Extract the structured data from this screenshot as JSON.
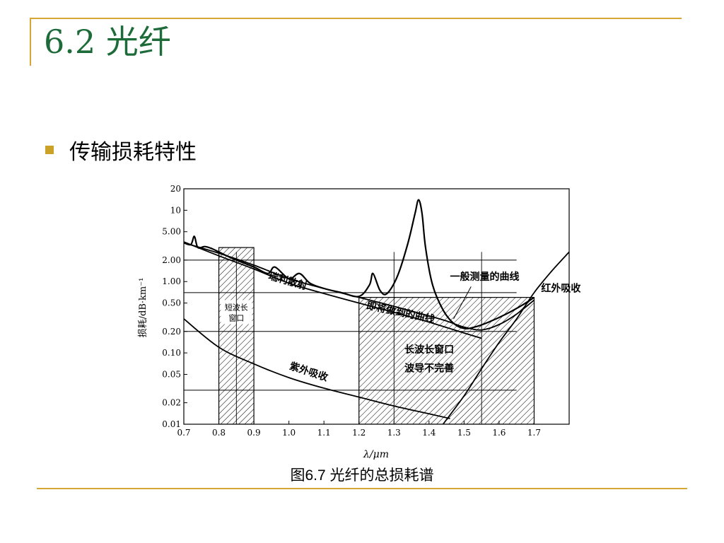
{
  "slide": {
    "title": "6.2 光纤",
    "bullet": "传输损耗特性",
    "caption": "图6.7 光纤的总损耗谱"
  },
  "colors": {
    "title": "#1e6b3a",
    "accent_rule": "#d6a737",
    "bullet": "#c9a227"
  },
  "chart_data": {
    "type": "line",
    "title": "",
    "xlabel": "λ/μm",
    "ylabel": "损耗/dB·km⁻¹",
    "xlim": [
      0.7,
      1.8
    ],
    "ylim": [
      0.01,
      20
    ],
    "yscale": "log",
    "grid": false,
    "x_ticks": [
      0.7,
      0.8,
      0.9,
      1.0,
      1.1,
      1.2,
      1.3,
      1.4,
      1.5,
      1.6,
      1.7
    ],
    "x_tick_labels": [
      "0.7",
      "0.8",
      "0.9",
      "1.0",
      "1.1",
      "1.2",
      "1.3",
      "1.4",
      "1.5",
      "1.6",
      "1.7"
    ],
    "y_ticks": [
      20,
      10,
      5,
      2,
      1,
      0.5,
      0.2,
      0.1,
      0.05,
      0.02,
      0.01
    ],
    "y_tick_labels": [
      "20",
      "10",
      "5.00",
      "2.00",
      "1.00",
      "0.50",
      "0.20",
      "0.10",
      "0.05",
      "0.02",
      "0.01"
    ],
    "reference_lines": {
      "horizontal": [
        2.0,
        0.7,
        0.2,
        0.03
      ],
      "vertical": [
        0.85,
        1.3,
        1.55
      ]
    },
    "regions": [
      {
        "label": "短波长窗口",
        "x": [
          0.8,
          0.9
        ],
        "y": [
          0.01,
          3.0
        ],
        "label_lines": [
          "短波长",
          "窗口"
        ]
      },
      {
        "label": "长波长窗口",
        "x": [
          1.2,
          1.7
        ],
        "y": [
          0.01,
          0.6
        ],
        "label_lines": []
      }
    ],
    "series": [
      {
        "name": "一般测量的曲线",
        "x": [
          0.7,
          0.72,
          0.73,
          0.74,
          0.76,
          0.78,
          0.8,
          0.84,
          0.9,
          0.94,
          0.96,
          1.0,
          1.03,
          1.06,
          1.1,
          1.15,
          1.2,
          1.23,
          1.24,
          1.26,
          1.28,
          1.31,
          1.34,
          1.36,
          1.37,
          1.38,
          1.39,
          1.41,
          1.44,
          1.47,
          1.5,
          1.53,
          1.57,
          1.62,
          1.67,
          1.7
        ],
        "y": [
          3.5,
          3.3,
          4.3,
          3.0,
          3.1,
          2.9,
          2.6,
          2.1,
          1.6,
          1.3,
          1.6,
          1.1,
          1.3,
          0.95,
          0.8,
          0.7,
          0.62,
          0.9,
          1.3,
          0.75,
          0.68,
          1.2,
          3.5,
          9.0,
          14.0,
          9.0,
          3.0,
          0.9,
          0.4,
          0.26,
          0.22,
          0.23,
          0.27,
          0.35,
          0.48,
          0.6
        ]
      },
      {
        "name": "即将做到的曲线",
        "x": [
          0.7,
          0.8,
          0.9,
          1.0,
          1.1,
          1.2,
          1.3,
          1.4,
          1.45,
          1.5,
          1.55,
          1.6,
          1.65,
          1.7
        ],
        "y": [
          3.5,
          2.5,
          1.7,
          1.1,
          0.8,
          0.6,
          0.45,
          0.33,
          0.28,
          0.23,
          0.21,
          0.25,
          0.35,
          0.55
        ]
      },
      {
        "name": "瑞利散射",
        "x": [
          0.7,
          0.8,
          0.9,
          1.0,
          1.1,
          1.2,
          1.3,
          1.4,
          1.5,
          1.55
        ],
        "y": [
          3.6,
          2.3,
          1.5,
          0.95,
          0.68,
          0.5,
          0.37,
          0.27,
          0.19,
          0.16
        ]
      },
      {
        "name": "紫外吸收",
        "x": [
          0.7,
          0.8,
          0.9,
          1.0,
          1.1,
          1.2,
          1.3,
          1.4,
          1.46
        ],
        "y": [
          0.3,
          0.12,
          0.07,
          0.045,
          0.032,
          0.024,
          0.018,
          0.014,
          0.012
        ]
      },
      {
        "name": "红外吸收",
        "x": [
          1.44,
          1.5,
          1.55,
          1.6,
          1.65,
          1.7,
          1.75,
          1.8
        ],
        "y": [
          0.01,
          0.025,
          0.06,
          0.14,
          0.3,
          0.7,
          1.4,
          2.6
        ]
      }
    ],
    "annotations": [
      {
        "text": "瑞利散射",
        "x": 0.94,
        "y": 1.1
      },
      {
        "text": "一般测量的曲线",
        "x": 1.46,
        "y": 1.05
      },
      {
        "text": "即将做到的曲线",
        "x": 1.22,
        "y": 0.42
      },
      {
        "text": "红外吸收",
        "x": 1.72,
        "y": 0.72
      },
      {
        "text": "长波长窗口",
        "x": 1.33,
        "y": 0.1
      },
      {
        "text": "波导不完善",
        "x": 1.33,
        "y": 0.055
      },
      {
        "text": "紫外吸收",
        "x": 1.0,
        "y": 0.06
      }
    ]
  }
}
